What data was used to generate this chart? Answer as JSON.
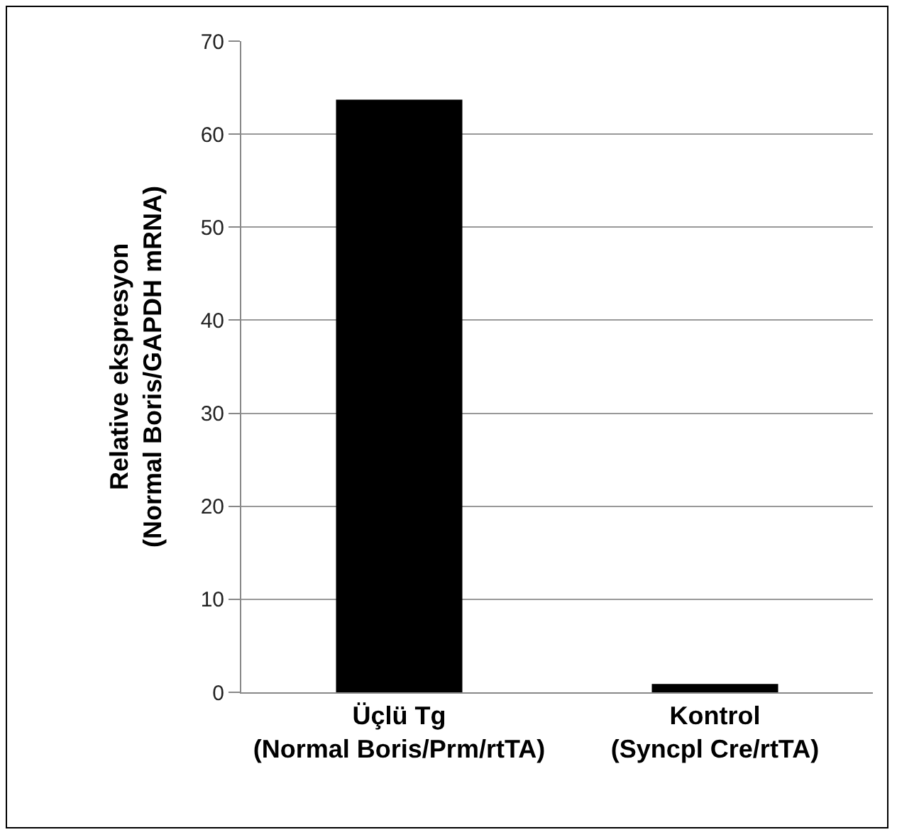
{
  "chart_data": {
    "type": "bar",
    "ylabel": "Relative ekspresyon\n(Normal Boris/GAPDH mRNA)",
    "categories": [
      "Üçlü Tg\n(Normal Boris/Prm/rtTA)",
      "Kontrol\n(Syncpl Cre/rtTA)"
    ],
    "values": [
      63.7,
      0.9
    ],
    "color": "#000000",
    "ylim": [
      0,
      70
    ],
    "yticks": [
      0,
      10,
      20,
      30,
      40,
      50,
      60,
      70
    ],
    "grid": "y",
    "legend": false
  }
}
